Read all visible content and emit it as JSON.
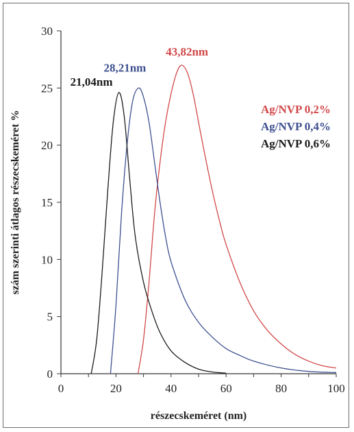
{
  "chart_data": {
    "type": "line",
    "title": "",
    "xlabel": "részecskeméret (nm)",
    "ylabel": "szám szerinti átlagos részecskeméret %",
    "xlim": [
      0,
      100
    ],
    "ylim": [
      0,
      30
    ],
    "x_ticks": [
      "0",
      "20",
      "40",
      "60",
      "80",
      "100"
    ],
    "y_ticks": [
      "0",
      "5",
      "10",
      "15",
      "20",
      "25",
      "30"
    ],
    "grid": false,
    "legend_position": "top-right",
    "series": [
      {
        "name": "Ag/NVP 0,2%",
        "color": "#d14747",
        "peak_label": "43,82nm",
        "x": [
          28,
          30,
          32,
          34,
          36,
          38,
          40,
          42,
          43.82,
          46,
          48,
          50,
          52,
          55,
          58,
          60,
          65,
          70,
          75,
          80,
          85,
          90,
          95,
          100
        ],
        "y": [
          0,
          3,
          8,
          14,
          18.5,
          22,
          24.5,
          26.3,
          27,
          26.3,
          24.5,
          22,
          19.5,
          16,
          13,
          11.3,
          8,
          5.5,
          3.8,
          2.6,
          1.7,
          1.1,
          0.7,
          0.5
        ]
      },
      {
        "name": "Ag/NVP 0,4%",
        "color": "#3d4f8f",
        "peak_label": "28,21nm",
        "x": [
          18,
          20,
          22,
          24,
          26,
          28.21,
          30,
          32,
          34,
          36,
          38,
          40,
          45,
          50,
          55,
          60,
          65,
          70,
          80,
          90,
          100
        ],
        "y": [
          0,
          6,
          14,
          20,
          23.8,
          25,
          24.2,
          22,
          18.5,
          15,
          12,
          9.8,
          6.5,
          4.5,
          3.2,
          2.2,
          1.6,
          1.1,
          0.5,
          0.2,
          0.1
        ]
      },
      {
        "name": "Ag/NVP 0,6%",
        "color": "#1a1a1a",
        "peak_label": "21,04nm",
        "x": [
          11,
          13,
          15,
          17,
          19,
          21.04,
          23,
          25,
          27,
          30,
          33,
          36,
          40,
          45,
          50,
          55,
          60
        ],
        "y": [
          0,
          3,
          9,
          16,
          22,
          24.6,
          22.5,
          17,
          12,
          8,
          5.5,
          3.6,
          2,
          1,
          0.4,
          0.15,
          0.05
        ]
      }
    ]
  }
}
